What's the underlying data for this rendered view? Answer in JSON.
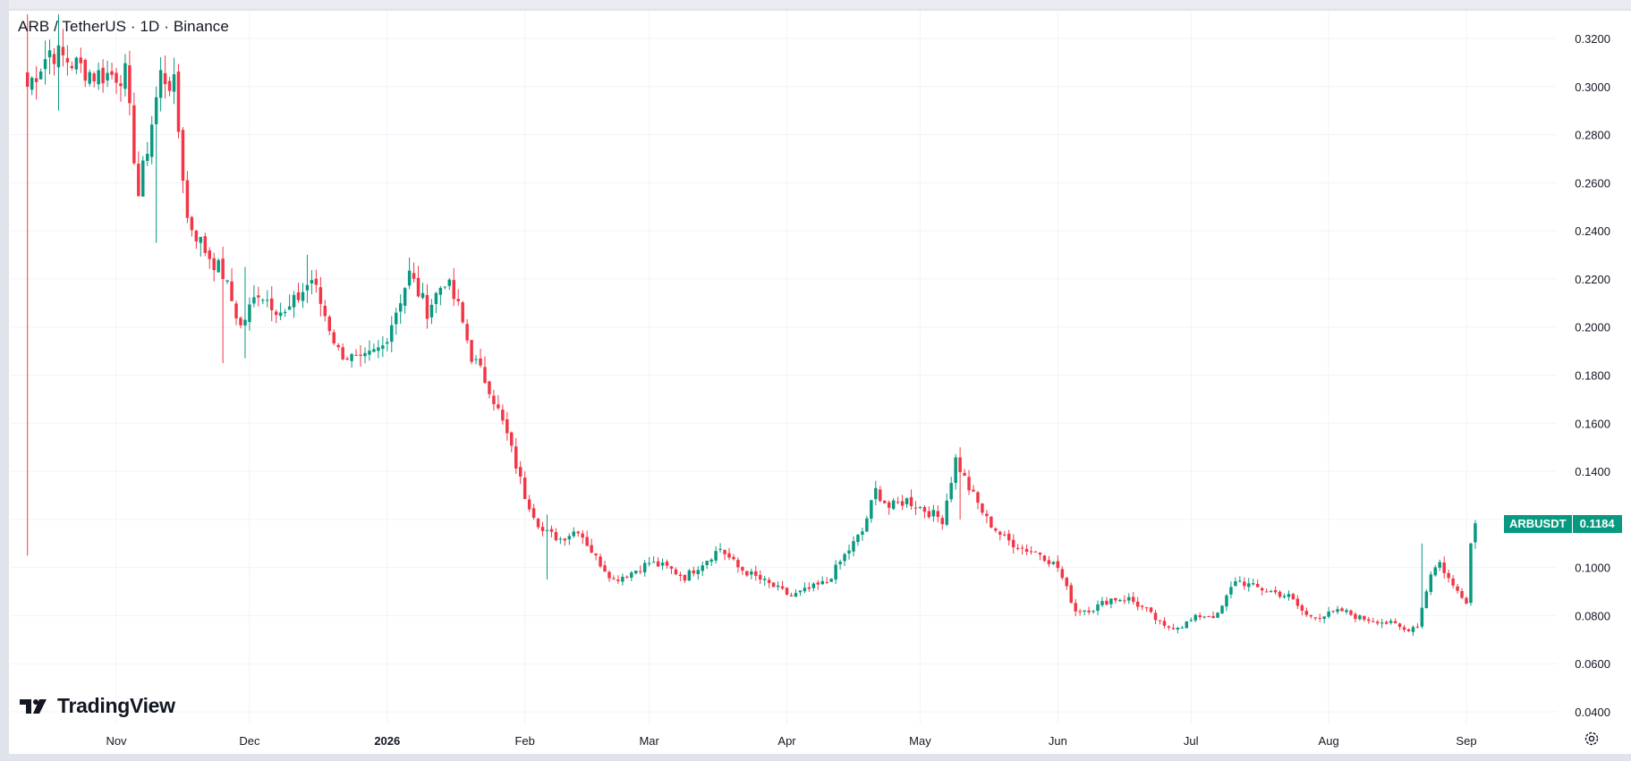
{
  "chart_data": {
    "type": "candlestick",
    "title": "ARB / TetherUS · 1D · Binance",
    "symbol": "ARBUSDT",
    "last_price": "0.1184",
    "ylim": [
      0.03,
      0.33
    ],
    "y_ticks": [
      "0.3200",
      "0.3000",
      "0.2800",
      "0.2600",
      "0.2400",
      "0.2200",
      "0.2000",
      "0.1800",
      "0.1600",
      "0.1400",
      "0.1200",
      "0.1000",
      "0.0800",
      "0.0600",
      "0.0400"
    ],
    "x_ticks": [
      {
        "label": "Nov",
        "day": 20
      },
      {
        "label": "Dec",
        "day": 50
      },
      {
        "label": "2026",
        "day": 81,
        "bold": true
      },
      {
        "label": "Feb",
        "day": 112
      },
      {
        "label": "Mar",
        "day": 140
      },
      {
        "label": "Apr",
        "day": 171
      },
      {
        "label": "May",
        "day": 201
      },
      {
        "label": "Jun",
        "day": 232
      },
      {
        "label": "Jul",
        "day": 262
      },
      {
        "label": "Aug",
        "day": 293
      },
      {
        "label": "Sep",
        "day": 324
      }
    ],
    "colors": {
      "up": "#089981",
      "down": "#f23645",
      "grid": "#f0f3fa",
      "axis_text": "#131722"
    },
    "price_path": [
      [
        0,
        0.3
      ],
      [
        5,
        0.315
      ],
      [
        10,
        0.31
      ],
      [
        15,
        0.305
      ],
      [
        22,
        0.305
      ],
      [
        25,
        0.255
      ],
      [
        30,
        0.305
      ],
      [
        33,
        0.3
      ],
      [
        36,
        0.245
      ],
      [
        40,
        0.232
      ],
      [
        44,
        0.222
      ],
      [
        48,
        0.2
      ],
      [
        52,
        0.215
      ],
      [
        58,
        0.205
      ],
      [
        64,
        0.22
      ],
      [
        70,
        0.19
      ],
      [
        75,
        0.185
      ],
      [
        80,
        0.192
      ],
      [
        84,
        0.212
      ],
      [
        86,
        0.222
      ],
      [
        90,
        0.207
      ],
      [
        94,
        0.22
      ],
      [
        97,
        0.208
      ],
      [
        100,
        0.188
      ],
      [
        104,
        0.175
      ],
      [
        108,
        0.155
      ],
      [
        112,
        0.13
      ],
      [
        116,
        0.115
      ],
      [
        120,
        0.112
      ],
      [
        124,
        0.116
      ],
      [
        128,
        0.104
      ],
      [
        132,
        0.095
      ],
      [
        136,
        0.098
      ],
      [
        140,
        0.102
      ],
      [
        144,
        0.1
      ],
      [
        148,
        0.096
      ],
      [
        152,
        0.102
      ],
      [
        156,
        0.108
      ],
      [
        160,
        0.1
      ],
      [
        164,
        0.096
      ],
      [
        168,
        0.092
      ],
      [
        172,
        0.088
      ],
      [
        176,
        0.091
      ],
      [
        180,
        0.094
      ],
      [
        184,
        0.105
      ],
      [
        188,
        0.115
      ],
      [
        191,
        0.132
      ],
      [
        194,
        0.125
      ],
      [
        198,
        0.128
      ],
      [
        202,
        0.124
      ],
      [
        206,
        0.12
      ],
      [
        209,
        0.145
      ],
      [
        212,
        0.133
      ],
      [
        216,
        0.12
      ],
      [
        220,
        0.112
      ],
      [
        224,
        0.108
      ],
      [
        228,
        0.106
      ],
      [
        232,
        0.1
      ],
      [
        236,
        0.082
      ],
      [
        240,
        0.083
      ],
      [
        244,
        0.087
      ],
      [
        248,
        0.087
      ],
      [
        252,
        0.082
      ],
      [
        256,
        0.075
      ],
      [
        260,
        0.076
      ],
      [
        264,
        0.08
      ],
      [
        268,
        0.08
      ],
      [
        272,
        0.095
      ],
      [
        276,
        0.092
      ],
      [
        280,
        0.09
      ],
      [
        284,
        0.088
      ],
      [
        288,
        0.08
      ],
      [
        292,
        0.08
      ],
      [
        296,
        0.082
      ],
      [
        300,
        0.079
      ],
      [
        304,
        0.078
      ],
      [
        308,
        0.076
      ],
      [
        310,
        0.074
      ],
      [
        313,
        0.076
      ],
      [
        316,
        0.098
      ],
      [
        318,
        0.102
      ],
      [
        321,
        0.092
      ],
      [
        324,
        0.087
      ],
      [
        325,
        0.11
      ],
      [
        326,
        0.1184
      ]
    ],
    "spikes": [
      {
        "day": 0,
        "low": 0.105,
        "high": 0.33
      },
      {
        "day": 7,
        "low": 0.29,
        "high": 0.33
      },
      {
        "day": 29,
        "low": 0.235,
        "high": 0.3
      },
      {
        "day": 44,
        "low": 0.185,
        "high": 0.225
      },
      {
        "day": 49,
        "low": 0.187,
        "high": 0.225
      },
      {
        "day": 63,
        "low": 0.21,
        "high": 0.23
      },
      {
        "day": 117,
        "low": 0.095,
        "high": 0.122
      },
      {
        "day": 210,
        "low": 0.12,
        "high": 0.15
      },
      {
        "day": 314,
        "low": 0.09,
        "high": 0.11
      }
    ]
  }
}
